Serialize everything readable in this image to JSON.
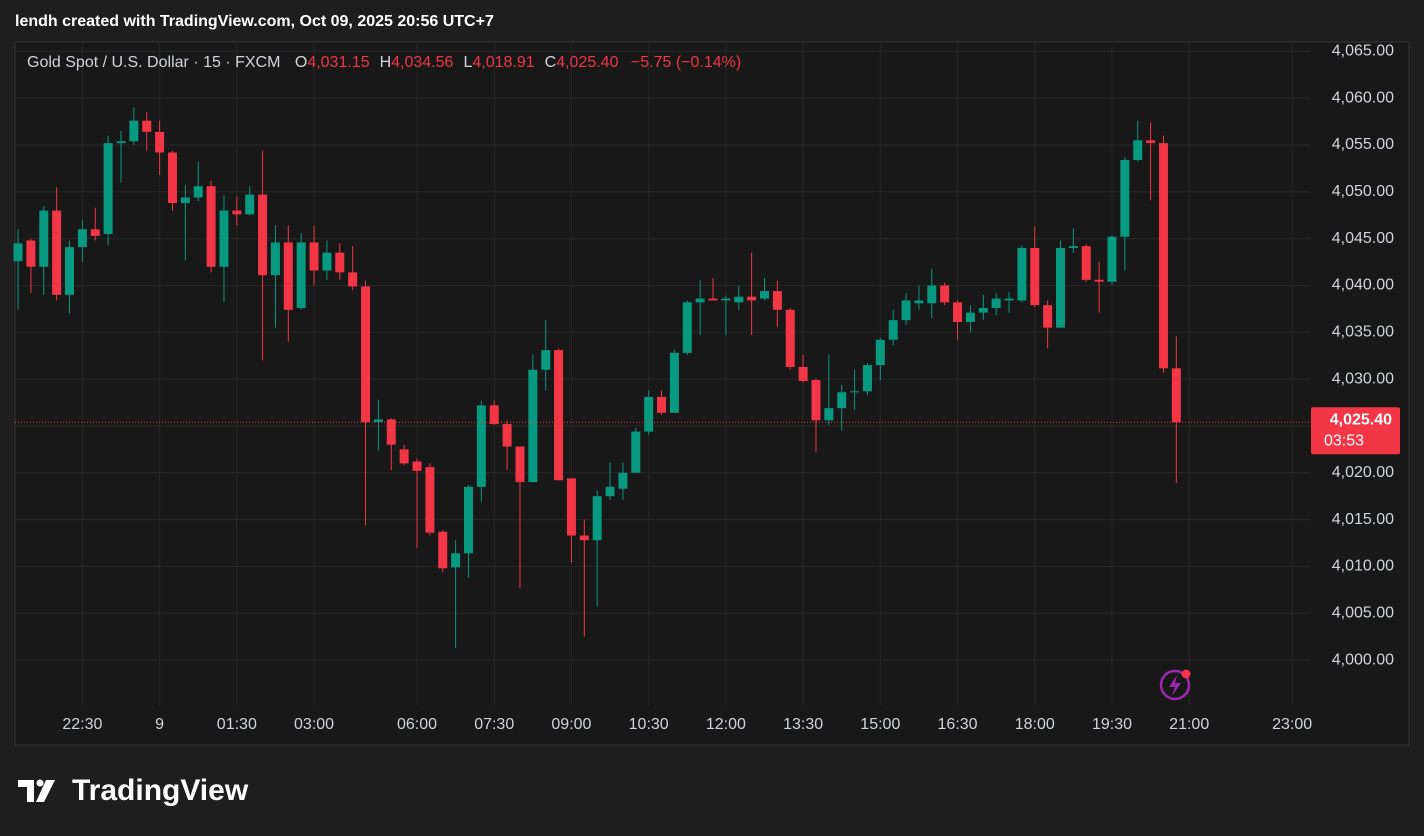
{
  "attribution": "lendh created with TradingView.com, Oct 09, 2025 20:56 UTC+7",
  "brand": "TradingView",
  "chart_data": {
    "type": "candlestick",
    "header": {
      "symbol": "Gold Spot / U.S. Dollar · 15 · FXCM",
      "ohlc": [
        {
          "label": "O",
          "text": "4,031.15"
        },
        {
          "label": "H",
          "text": "4,034.56"
        },
        {
          "label": "L",
          "text": "4,018.91"
        },
        {
          "label": "C",
          "text": "4,025.40"
        }
      ],
      "change": "−5.75 (−0.14%)"
    },
    "last_price": {
      "value": 4025.4,
      "label": "4,025.40"
    },
    "countdown": "03:53",
    "up_color": "#089981",
    "down_color": "#f23645",
    "grid": true,
    "categories": [
      null,
      null,
      null,
      null,
      null,
      "22:30",
      null,
      null,
      null,
      null,
      null,
      "9",
      null,
      null,
      null,
      null,
      null,
      "01:30",
      null,
      null,
      null,
      null,
      null,
      "03:00",
      null,
      null,
      null,
      null,
      null,
      null,
      null,
      "06:00",
      null,
      null,
      null,
      null,
      null,
      "07:30",
      null,
      null,
      null,
      null,
      null,
      "09:00",
      null,
      null,
      null,
      null,
      null,
      "10:30",
      null,
      null,
      null,
      null,
      null,
      "12:00",
      null,
      null,
      null,
      null,
      null,
      "13:30",
      null,
      null,
      null,
      null,
      null,
      "15:00",
      null,
      null,
      null,
      null,
      null,
      "16:30",
      null,
      null,
      null,
      null,
      null,
      "18:00",
      null,
      null,
      null,
      null,
      null,
      "19:30",
      null,
      null,
      null,
      null,
      null,
      "21:00",
      null,
      null,
      null,
      null,
      null,
      null,
      null,
      "23:00"
    ],
    "open": [
      4042.6,
      4044.8,
      4042,
      4048,
      4039,
      4044.1,
      4046,
      4045.5,
      4055.2,
      4055.4,
      4057.6,
      4056.4,
      4054.2,
      4048.8,
      4049.4,
      4050.6,
      4042,
      4048,
      4047.6,
      4049.7,
      4041.1,
      4044.6,
      4037.6,
      4044.6,
      4041.6,
      4043.5,
      4041.4,
      4039.9,
      4025.4,
      4025.7,
      4022.5,
      4021.2,
      4020.6,
      4013.7,
      4009.9,
      4011.4,
      4018.5,
      4027.2,
      4025.2,
      4022.8,
      4019,
      4031,
      4033.1,
      4019.4,
      4013.3,
      4012.8,
      4017.5,
      4018.3,
      4020,
      4024.4,
      4028.1,
      4026.4,
      4032.8,
      4038.2,
      4038.6,
      4038.4,
      4038.2,
      4038.8,
      4038.6,
      4039.4,
      4037.4,
      4031.3,
      4029.9,
      4025.6,
      4026.9,
      4028.6,
      4028.7,
      4031.5,
      4034.2,
      4036.3,
      4038.1,
      4038.1,
      4040,
      4038.2,
      4036.1,
      4037.1,
      4037.6,
      4038.4,
      4038.4,
      4044,
      4037.9,
      4035.5,
      4044,
      4044.2,
      4040.6,
      4040.4,
      4045.2,
      4053.4,
      4055.5,
      4055.2,
      4031.15,
      null,
      null,
      null,
      null,
      null,
      null,
      null,
      null,
      null
    ],
    "high": [
      4046,
      4045,
      4048.5,
      4050.5,
      4044.8,
      4047,
      4048.3,
      4056,
      4056.5,
      4059,
      4058.5,
      4057.6,
      4054.4,
      4050.7,
      4053.2,
      4051.2,
      4049.6,
      4049.5,
      4050.6,
      4054.4,
      4046.4,
      4046.4,
      4045.6,
      4046.4,
      4044.8,
      4044.5,
      4044.2,
      4040.5,
      4027.8,
      4025.8,
      4023,
      4021.5,
      4021,
      4013.9,
      4012.8,
      4018.7,
      4027.7,
      4027.7,
      4025.6,
      4022.8,
      4032.6,
      4036.3,
      4033.3,
      4019.4,
      4015,
      4018.1,
      4021.1,
      4021.1,
      4024.8,
      4028.8,
      4028.8,
      4033.1,
      4038.4,
      4040.6,
      4040.8,
      4038.9,
      4040,
      4043.5,
      4040.8,
      4040.5,
      4037.6,
      4032.6,
      4030.1,
      4032.6,
      4029.4,
      4031,
      4031.7,
      4034.4,
      4037.4,
      4039.2,
      4040,
      4041.8,
      4040.3,
      4038.4,
      4037.9,
      4039,
      4039.2,
      4039.3,
      4044.3,
      4046.3,
      4038.4,
      4044.8,
      4046.1,
      4044.4,
      4042.5,
      4045.4,
      4053.7,
      4057.6,
      4057.4,
      4056,
      4034.56,
      null,
      null,
      null,
      null,
      null,
      null,
      null,
      null,
      null
    ],
    "low": [
      4037.4,
      4039.2,
      4039,
      4038.4,
      4037,
      4042.5,
      4044.8,
      4044.3,
      4051,
      4055,
      4054.4,
      4051.8,
      4048,
      4042.7,
      4049,
      4041.4,
      4038.2,
      4046.4,
      4047.5,
      4032,
      4035.5,
      4034,
      4037.4,
      4040,
      4040.6,
      4040.6,
      4039.5,
      4014.4,
      4022.4,
      4020.3,
      4020.8,
      4012,
      4013.3,
      4009.4,
      4001.3,
      4008.8,
      4016.9,
      4025.1,
      4020.3,
      4007.7,
      4019,
      4028.8,
      4019.2,
      4010.4,
      4002.5,
      4005.7,
      4017.1,
      4017.1,
      4020,
      4024,
      4026.2,
      4026.4,
      4032.6,
      4034.7,
      4038.4,
      4034.7,
      4037.4,
      4034.7,
      4038.4,
      4035.6,
      4031,
      4029.6,
      4022.2,
      4025.1,
      4024.5,
      4026.7,
      4028.3,
      4029.9,
      4033.6,
      4035.8,
      4037.4,
      4036.5,
      4037.9,
      4034.2,
      4035,
      4036.3,
      4036.8,
      4037.1,
      4038.2,
      4037.7,
      4033.3,
      4035.5,
      4043.5,
      4040.4,
      4037.1,
      4040.1,
      4041.6,
      4053.2,
      4049.1,
      4030.7,
      4018.91,
      null,
      null,
      null,
      null,
      null,
      null,
      null,
      null,
      null
    ],
    "close": [
      4044.5,
      4042,
      4048,
      4039,
      4044.1,
      4046,
      4045.3,
      4055.2,
      4055.4,
      4057.6,
      4056.4,
      4054.2,
      4048.8,
      4049.4,
      4050.6,
      4042,
      4048,
      4047.6,
      4049.7,
      4041.1,
      4044.6,
      4037.4,
      4044.6,
      4041.6,
      4043.5,
      4041.4,
      4039.9,
      4025.4,
      4025.7,
      4023,
      4021,
      4020.2,
      4013.6,
      4009.8,
      4011.4,
      4018.5,
      4027.2,
      4025.2,
      4022.8,
      4019,
      4031,
      4033.1,
      4019.2,
      4013.3,
      4012.8,
      4017.5,
      4018.5,
      4020,
      4024.4,
      4028.1,
      4026.4,
      4032.8,
      4038.2,
      4038.6,
      4038.4,
      4038.6,
      4038.8,
      4038.4,
      4039.4,
      4037.4,
      4031.3,
      4029.8,
      4025.6,
      4026.9,
      4028.6,
      4028.7,
      4031.5,
      4034.2,
      4036.3,
      4038.4,
      4038.4,
      4040,
      4038.2,
      4036.1,
      4037.1,
      4037.6,
      4038.6,
      4038.6,
      4044,
      4037.9,
      4035.5,
      4044,
      4044.2,
      4040.6,
      4040.4,
      4045.2,
      4053.4,
      4055.5,
      4055.2,
      4031.15,
      4025.4,
      null,
      null,
      null,
      null,
      null,
      null,
      null,
      null,
      null
    ],
    "ylim": [
      3995.2,
      4066
    ],
    "yticks": [
      {
        "value": 4000,
        "label": "4,000.00"
      },
      {
        "value": 4005,
        "label": "4,005.00"
      },
      {
        "value": 4010,
        "label": "4,010.00"
      },
      {
        "value": 4015,
        "label": "4,015.00"
      },
      {
        "value": 4020,
        "label": "4,020.00"
      },
      {
        "value": 4025,
        "label": "4,025.00"
      },
      {
        "value": 4030,
        "label": "4,030.00"
      },
      {
        "value": 4035,
        "label": "4,035.00"
      },
      {
        "value": 4040,
        "label": "4,040.00"
      },
      {
        "value": 4045,
        "label": "4,045.00"
      },
      {
        "value": 4050,
        "label": "4,050.00"
      },
      {
        "value": 4055,
        "label": "4,055.00"
      },
      {
        "value": 4060,
        "label": "4,060.00"
      },
      {
        "value": 4065,
        "label": "4,065.00"
      }
    ]
  }
}
